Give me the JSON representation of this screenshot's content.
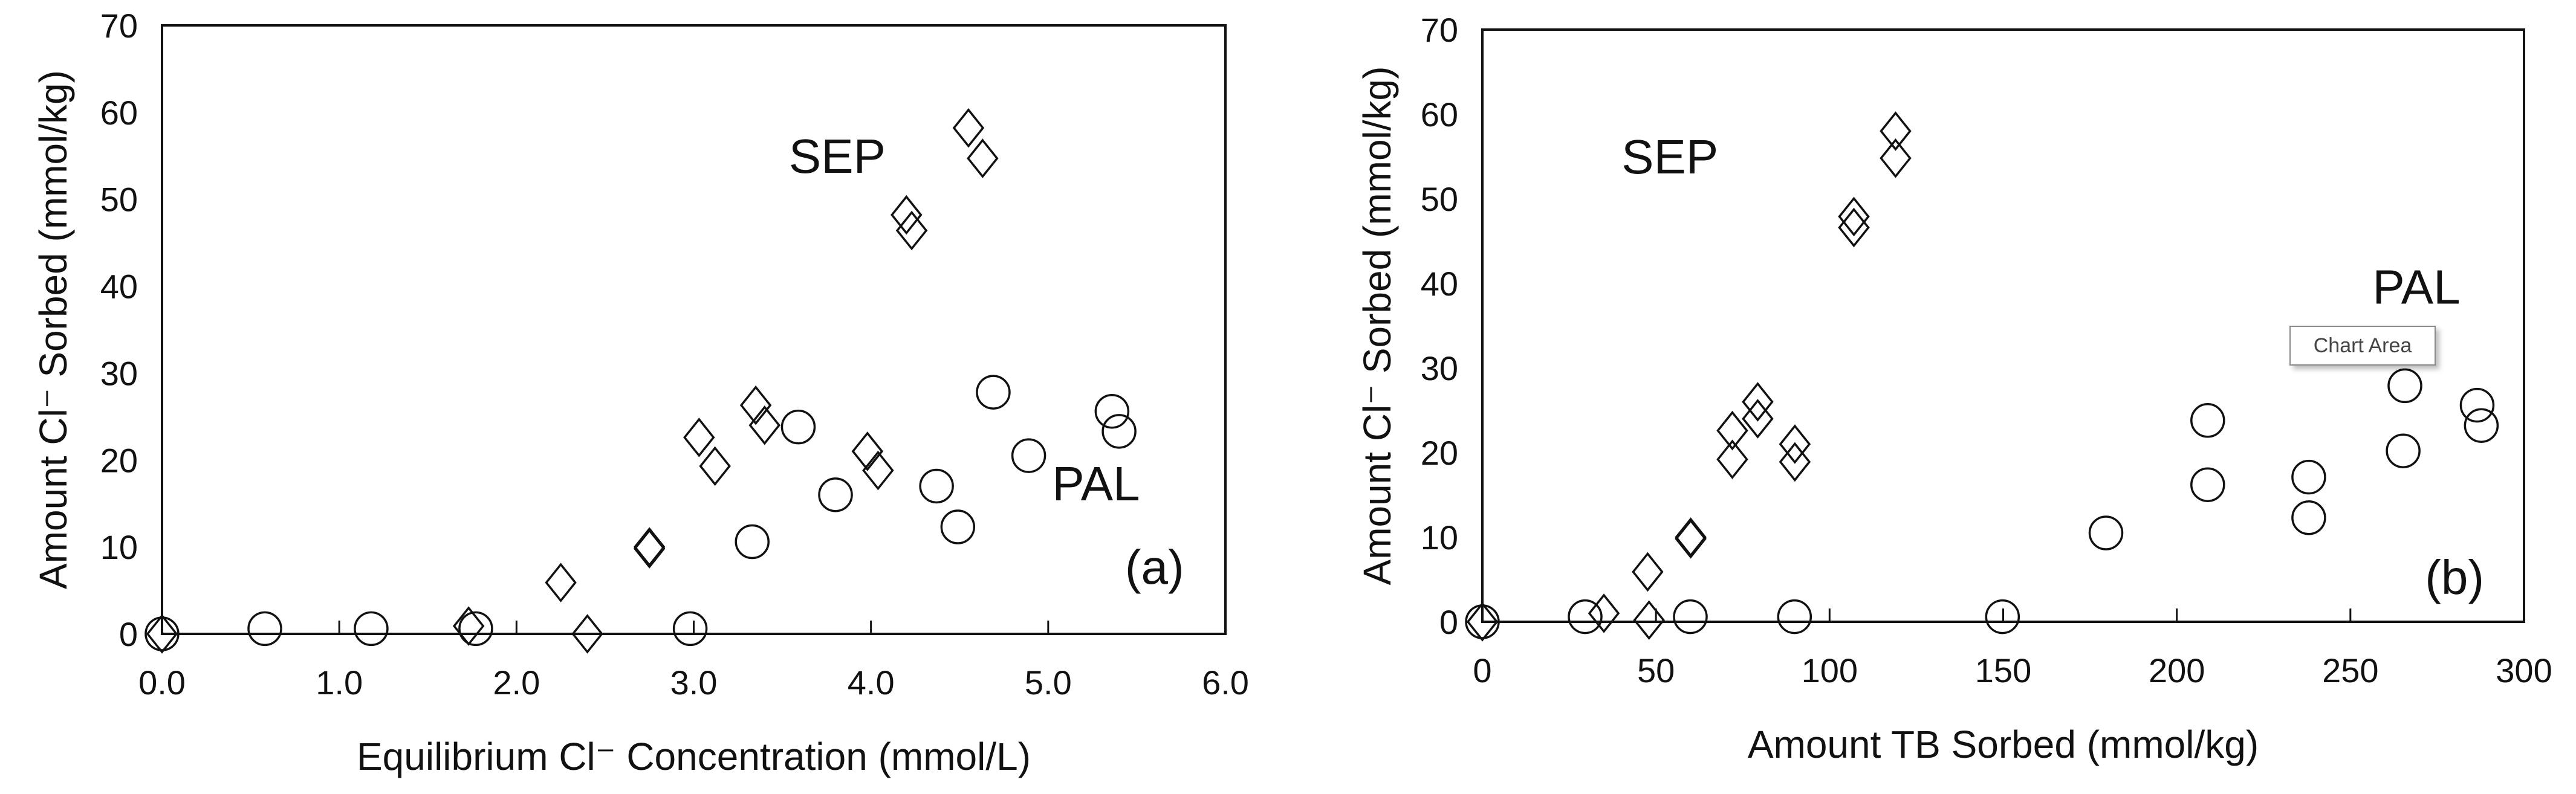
{
  "chart_data": [
    {
      "type": "scatter",
      "panel_label": "(a)",
      "xlabel": "Equilibrium Cl⁻ Concentration (mmol/L)",
      "ylabel": "Amount Cl⁻ Sorbed (mmol/kg)",
      "xlim": [
        0,
        6
      ],
      "ylim": [
        0,
        70
      ],
      "xticks": [
        "0.0",
        "1.0",
        "2.0",
        "3.0",
        "4.0",
        "5.0",
        "6.0"
      ],
      "yticks": [
        "0",
        "10",
        "20",
        "30",
        "40",
        "50",
        "60",
        "70"
      ],
      "grid": false,
      "annotations": [
        {
          "text": "SEP",
          "x": 3.81,
          "y": 55
        },
        {
          "text": "PAL",
          "x": 5.27,
          "y": 17.3
        },
        {
          "text": "(a)",
          "x": 5.6,
          "y": 7.7
        }
      ],
      "series": [
        {
          "marker": "diamond",
          "label_ref": "SEP",
          "points": [
            [
              0,
              0
            ],
            [
              1.73,
              0.9
            ],
            [
              2.25,
              5.9
            ],
            [
              2.4,
              0
            ],
            [
              2.75,
              10
            ],
            [
              2.75,
              9.8
            ],
            [
              3.03,
              22.6
            ],
            [
              3.12,
              19.3
            ],
            [
              3.35,
              26.3
            ],
            [
              3.4,
              24
            ],
            [
              3.98,
              21
            ],
            [
              4.04,
              18.8
            ],
            [
              4.2,
              48.2
            ],
            [
              4.23,
              46.4
            ],
            [
              4.55,
              58.2
            ],
            [
              4.63,
              54.7
            ]
          ]
        },
        {
          "marker": "circle",
          "label_ref": "PAL",
          "points": [
            [
              0,
              0
            ],
            [
              0.58,
              0.6
            ],
            [
              1.18,
              0.6
            ],
            [
              1.77,
              0.6
            ],
            [
              2.98,
              0.6
            ],
            [
              3.33,
              10.6
            ],
            [
              3.59,
              23.8
            ],
            [
              3.8,
              16
            ],
            [
              4.37,
              17
            ],
            [
              4.49,
              12.3
            ],
            [
              4.69,
              27.8
            ],
            [
              4.89,
              20.5
            ],
            [
              5.36,
              25.6
            ],
            [
              5.4,
              23.3
            ]
          ]
        }
      ]
    },
    {
      "type": "scatter",
      "panel_label": "(b)",
      "xlabel": "Amount TB Sorbed (mmol/kg)",
      "ylabel": "Amount Cl⁻ Sorbed (mmol/kg)",
      "xlim": [
        0,
        300
      ],
      "ylim": [
        0,
        70
      ],
      "xticks": [
        "0",
        "50",
        "100",
        "150",
        "200",
        "250",
        "300"
      ],
      "yticks": [
        "0",
        "10",
        "20",
        "30",
        "40",
        "50",
        "60",
        "70"
      ],
      "grid": false,
      "annotations": [
        {
          "text": "SEP",
          "x": 54,
          "y": 55
        },
        {
          "text": "PAL",
          "x": 269,
          "y": 39.6
        },
        {
          "text": "(b)",
          "x": 280,
          "y": 5.3
        }
      ],
      "series": [
        {
          "marker": "diamond",
          "label_ref": "SEP",
          "points": [
            [
              0,
              0
            ],
            [
              35,
              1
            ],
            [
              47.6,
              5.9
            ],
            [
              48,
              0.2
            ],
            [
              60,
              10
            ],
            [
              60,
              9.8
            ],
            [
              72,
              22.6
            ],
            [
              72,
              19.2
            ],
            [
              79.3,
              26
            ],
            [
              79.3,
              24
            ],
            [
              90,
              21
            ],
            [
              90,
              18.9
            ],
            [
              107,
              47.9
            ],
            [
              107,
              46.6
            ],
            [
              119,
              58
            ],
            [
              119,
              54.8
            ]
          ]
        },
        {
          "marker": "circle",
          "label_ref": "PAL",
          "points": [
            [
              0,
              0
            ],
            [
              29.6,
              0.6
            ],
            [
              59.9,
              0.6
            ],
            [
              89.9,
              0.6
            ],
            [
              149.8,
              0.6
            ],
            [
              179.6,
              10.5
            ],
            [
              208.9,
              23.8
            ],
            [
              208.9,
              16.2
            ],
            [
              238,
              17.1
            ],
            [
              238,
              12.3
            ],
            [
              265.7,
              27.9
            ],
            [
              265.2,
              20.2
            ],
            [
              286.5,
              25.6
            ],
            [
              287.7,
              23.2
            ]
          ]
        }
      ]
    }
  ],
  "tooltip": {
    "text": "Chart Area"
  }
}
